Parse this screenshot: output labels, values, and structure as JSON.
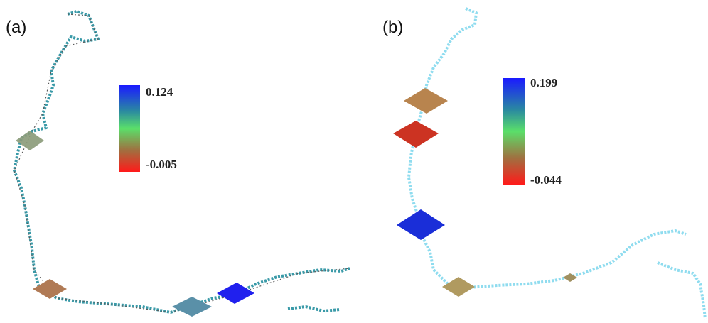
{
  "panels": [
    {
      "label": "(a)",
      "colorbar": {
        "max_label": "0.124",
        "min_label": "-0.005"
      }
    },
    {
      "label": "(b)",
      "colorbar": {
        "max_label": "0.199",
        "min_label": "-0.044"
      }
    }
  ]
}
